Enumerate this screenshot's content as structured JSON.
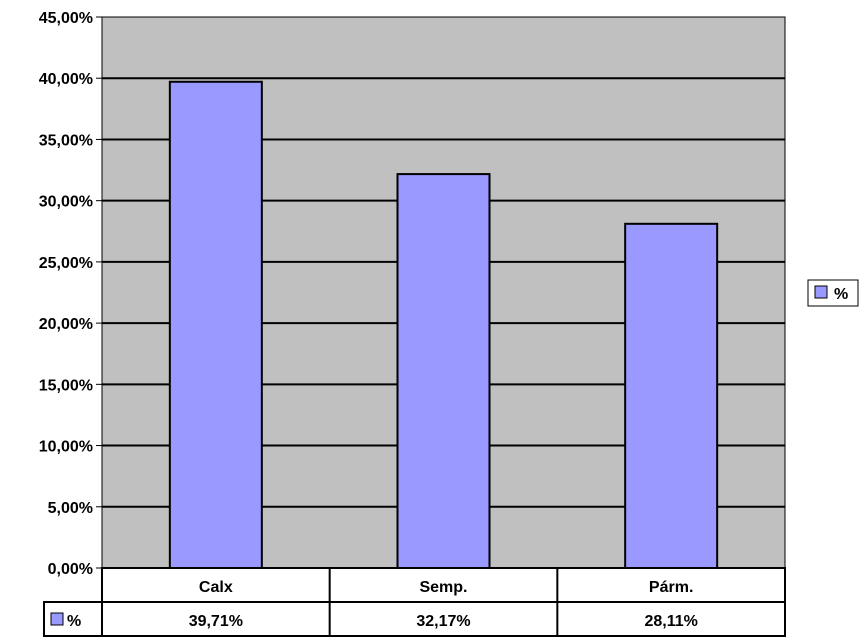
{
  "chart_data": {
    "type": "bar",
    "categories": [
      "Calx",
      "Semp.",
      "Párm."
    ],
    "series": [
      {
        "name": "%",
        "values": [
          39.71,
          32.17,
          28.11
        ],
        "color": "#9999ff"
      }
    ],
    "value_labels": [
      "39,71%",
      "32,17%",
      "28,11%"
    ],
    "y_ticks": [
      "0,00%",
      "5,00%",
      "10,00%",
      "15,00%",
      "20,00%",
      "25,00%",
      "30,00%",
      "35,00%",
      "40,00%",
      "45,00%"
    ],
    "ylim": [
      0,
      45
    ],
    "grid": true,
    "legend": {
      "position": "right",
      "label": "%"
    },
    "data_table": true,
    "plot_background": "#c0c0c0"
  }
}
